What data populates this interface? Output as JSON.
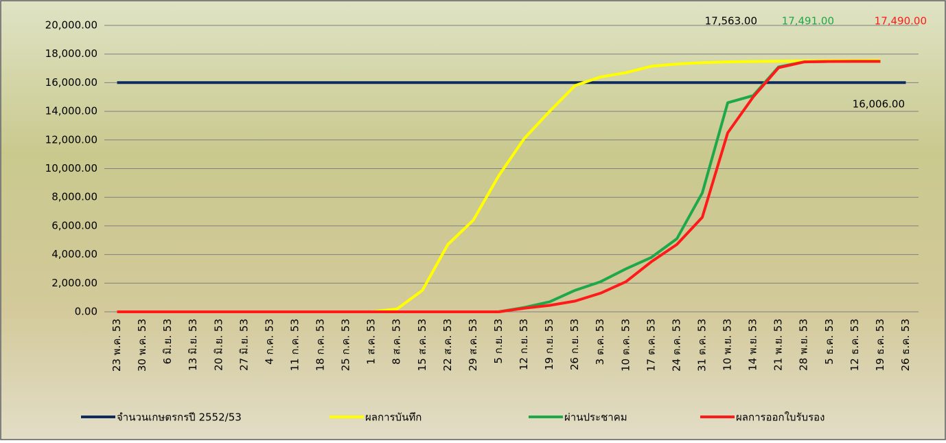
{
  "chart_data": {
    "type": "line",
    "categories": [
      "23 พ.ค. 53",
      "30 พ.ค. 53",
      "6 มิ.ย. 53",
      "13 มิ.ย. 53",
      "20 มิ.ย. 53",
      "27 มิ.ย. 53",
      "4 ก.ค. 53",
      "11 ก.ค. 53",
      "18 ก.ค. 53",
      "25 ก.ค. 53",
      "1 ส.ค. 53",
      "8 ส.ค. 53",
      "15 ส.ค. 53",
      "22 ส.ค. 53",
      "29 ส.ค. 53",
      "5 ก.ย. 53",
      "12 ก.ย. 53",
      "19 ก.ย. 53",
      "26 ก.ย. 53",
      "3 ต.ค. 53",
      "10 ต.ค. 53",
      "17 ต.ค. 53",
      "24 ต.ค. 53",
      "31 ต.ค. 53",
      "10 พ.ย. 53",
      "14 พ.ย. 53",
      "21 พ.ย. 53",
      "28 พ.ย. 53",
      "5 ธ.ค. 53",
      "12 ธ.ค. 53",
      "19 ธ.ค. 53",
      "26 ธ.ค. 53"
    ],
    "series": [
      {
        "name": "จำนวนเกษตรกรปี  2552/53",
        "color": "#0f2a5c",
        "label_color": "#000000",
        "values": [
          16006,
          16006,
          16006,
          16006,
          16006,
          16006,
          16006,
          16006,
          16006,
          16006,
          16006,
          16006,
          16006,
          16006,
          16006,
          16006,
          16006,
          16006,
          16006,
          16006,
          16006,
          16006,
          16006,
          16006,
          16006,
          16006,
          16006,
          16006,
          16006,
          16006,
          16006,
          16006
        ],
        "value_labels": [
          null,
          null,
          null,
          null,
          null,
          null,
          null,
          null,
          null,
          null,
          null,
          null,
          null,
          null,
          null,
          null,
          null,
          null,
          null,
          null,
          null,
          null,
          null,
          null,
          null,
          null,
          null,
          null,
          null,
          null,
          null,
          "16,006.00"
        ]
      },
      {
        "name": "ผลการบันทึก",
        "color": "#ffff00",
        "label_color": "#000000",
        "values": [
          0,
          0,
          0,
          0,
          0,
          0,
          0,
          0,
          0,
          0,
          0,
          200,
          1500,
          4700,
          6400,
          9500,
          12100,
          14000,
          15800,
          16400,
          16700,
          17150,
          17300,
          17400,
          17450,
          17480,
          17500,
          17520,
          17540,
          17550,
          17563,
          null
        ],
        "value_labels": [
          null,
          null,
          null,
          null,
          null,
          null,
          null,
          null,
          null,
          null,
          null,
          null,
          null,
          null,
          null,
          null,
          null,
          null,
          null,
          null,
          null,
          null,
          null,
          null,
          null,
          null,
          null,
          null,
          null,
          null,
          "17,563.00",
          null
        ]
      },
      {
        "name": "ผ่านประชาคม",
        "color": "#1ea84a",
        "label_color": "#1ea84a",
        "values": [
          0,
          0,
          0,
          0,
          0,
          0,
          0,
          0,
          0,
          0,
          0,
          0,
          0,
          0,
          0,
          0,
          300,
          700,
          1500,
          2100,
          3000,
          3800,
          5100,
          8300,
          14600,
          15100,
          17100,
          17450,
          17480,
          17490,
          17491,
          null
        ],
        "value_labels": [
          null,
          null,
          null,
          null,
          null,
          null,
          null,
          null,
          null,
          null,
          null,
          null,
          null,
          null,
          null,
          null,
          null,
          null,
          null,
          null,
          null,
          null,
          null,
          null,
          null,
          null,
          null,
          null,
          null,
          null,
          "17,491.00",
          null
        ]
      },
      {
        "name": "ผลการออกใบรับรอง",
        "color": "#ff1a1a",
        "label_color": "#ff1a1a",
        "values": [
          0,
          0,
          0,
          0,
          0,
          0,
          0,
          0,
          0,
          0,
          0,
          0,
          0,
          0,
          0,
          0,
          250,
          450,
          750,
          1300,
          2100,
          3500,
          4700,
          6600,
          12500,
          15000,
          17050,
          17450,
          17480,
          17488,
          17490,
          null
        ],
        "value_labels": [
          null,
          null,
          null,
          null,
          null,
          null,
          null,
          null,
          null,
          null,
          null,
          null,
          null,
          null,
          null,
          null,
          null,
          null,
          null,
          null,
          null,
          null,
          null,
          null,
          null,
          null,
          null,
          null,
          null,
          null,
          "17,490.00",
          null
        ]
      }
    ],
    "ylim": [
      0,
      20000
    ],
    "yticks": [
      {
        "value": 0,
        "label": "0.00"
      },
      {
        "value": 2000,
        "label": "2,000.00"
      },
      {
        "value": 4000,
        "label": "4,000.00"
      },
      {
        "value": 6000,
        "label": "6,000.00"
      },
      {
        "value": 8000,
        "label": "8,000.00"
      },
      {
        "value": 10000,
        "label": "10,000.00"
      },
      {
        "value": 12000,
        "label": "12,000.00"
      },
      {
        "value": 14000,
        "label": "14,000.00"
      },
      {
        "value": 16000,
        "label": "16,000.00"
      },
      {
        "value": 18000,
        "label": "18,000.00"
      },
      {
        "value": 20000,
        "label": "20,000.00"
      }
    ],
    "grid": true,
    "legend": "bottom"
  }
}
